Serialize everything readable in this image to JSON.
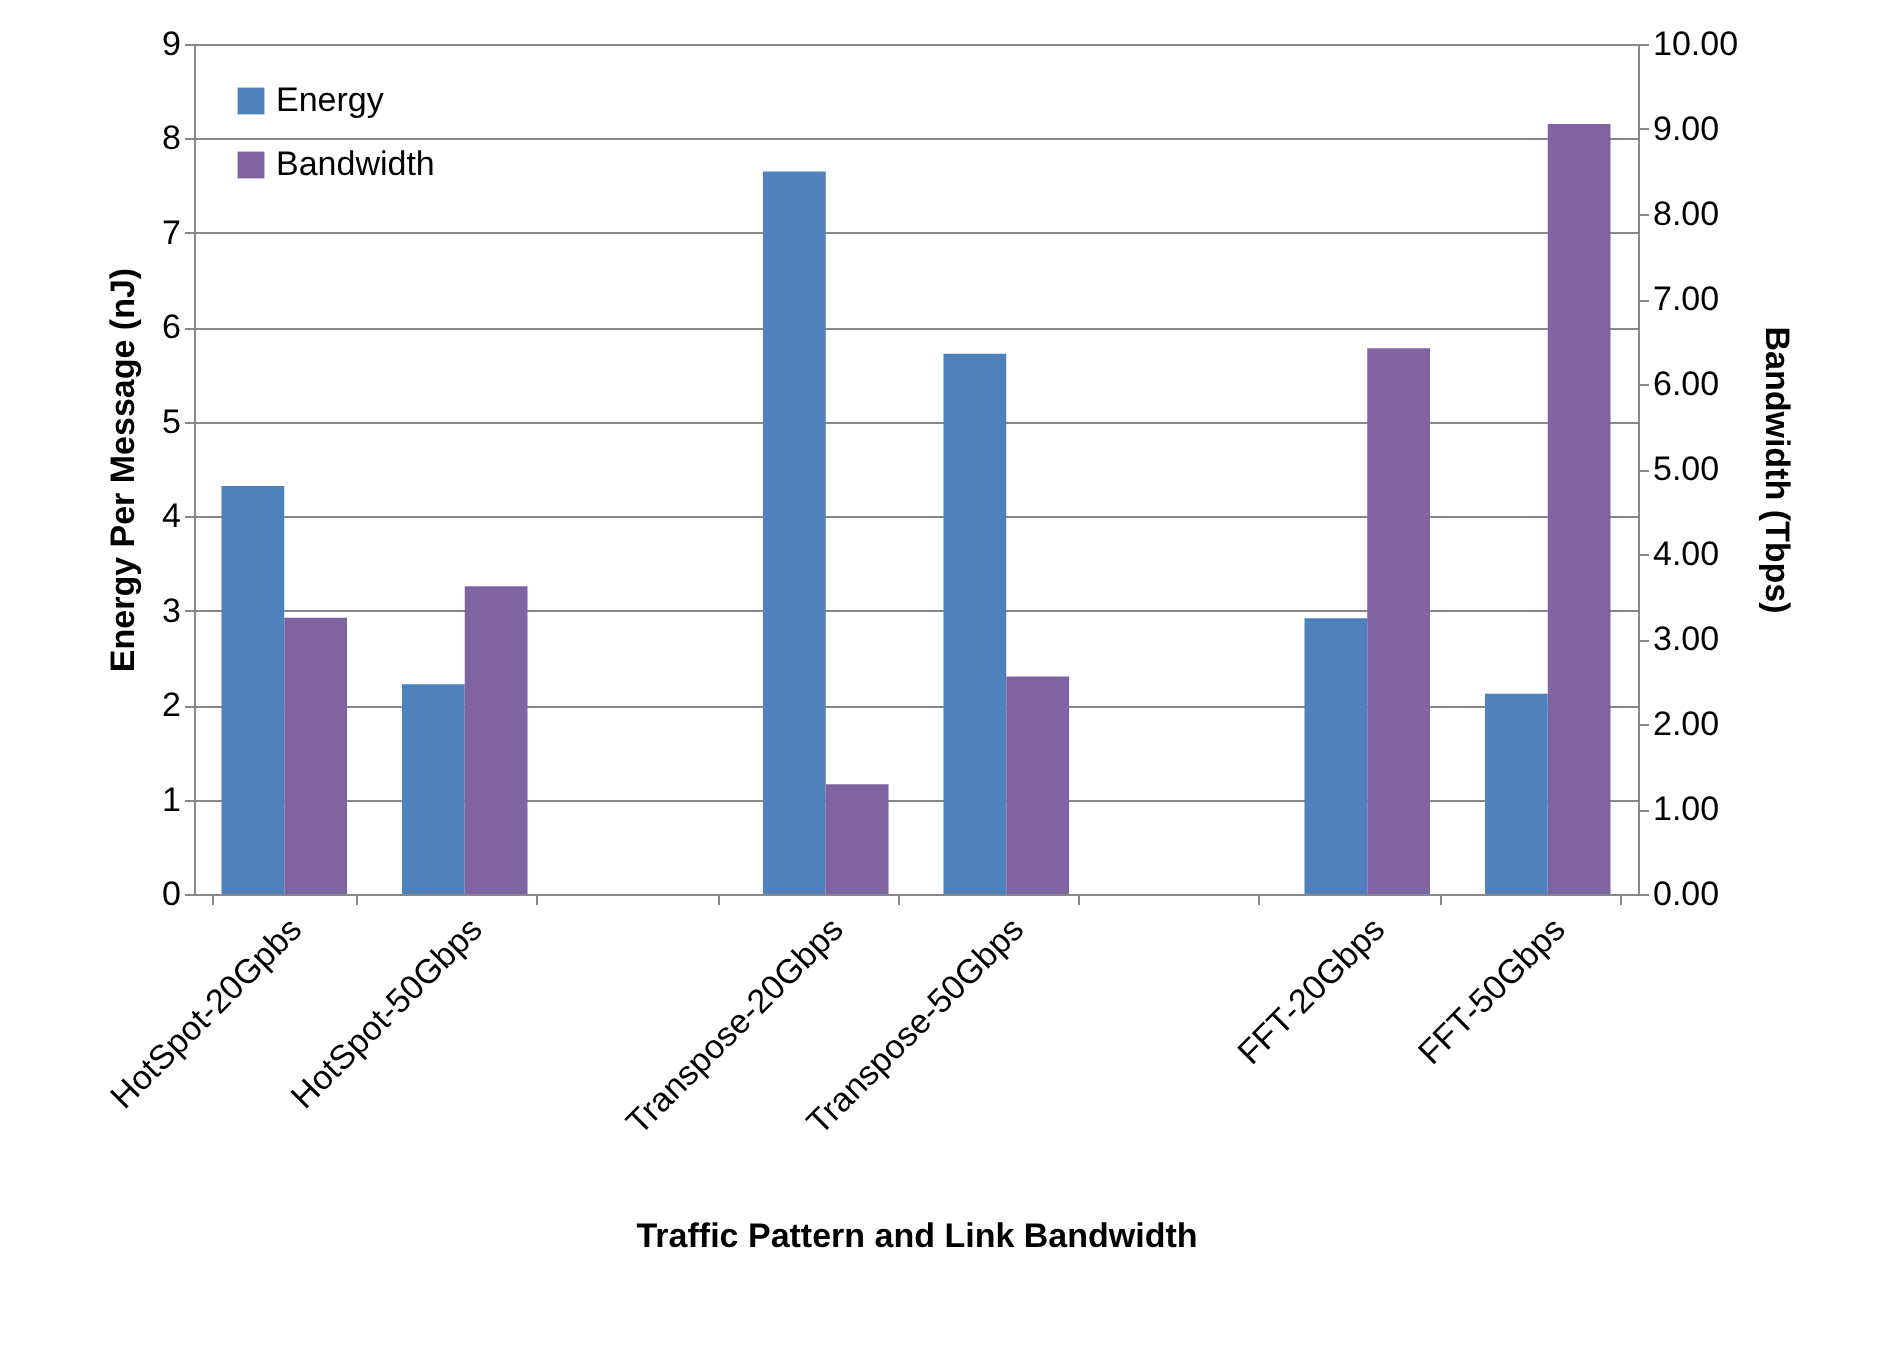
{
  "chart_data": {
    "type": "bar",
    "xlabel": "Traffic Pattern and Link Bandwidth",
    "ylabel": "Energy Per Message (nJ)",
    "y2label": "Bandwidth (Tbps)",
    "categories": [
      "HotSpot-20Gpbs",
      "HotSpot-50Gbps",
      null,
      "Transpose-20Gbps",
      "Transpose-50Gbps",
      null,
      "FFT-20Gbps",
      "FFT-50Gbps"
    ],
    "series": [
      {
        "name": "Energy",
        "color": "#4f81bd",
        "values": [
          4.32,
          2.22,
          null,
          7.65,
          5.72,
          null,
          2.92,
          2.12
        ]
      },
      {
        "name": "Bandwidth",
        "color": "#8064a2",
        "axis": "y2",
        "values": [
          3.25,
          3.62,
          null,
          1.29,
          2.56,
          null,
          6.42,
          9.06
        ]
      }
    ],
    "ylim": [
      0,
      9
    ],
    "yticks": [
      0,
      1,
      2,
      3,
      4,
      5,
      6,
      7,
      8,
      9
    ],
    "y2lim": [
      0,
      10
    ],
    "y2ticks": [
      {
        "value": 0,
        "label": "0.00"
      },
      {
        "value": 1,
        "label": "1.00"
      },
      {
        "value": 2,
        "label": "2.00"
      },
      {
        "value": 3,
        "label": "3.00"
      },
      {
        "value": 4,
        "label": "4.00"
      },
      {
        "value": 5,
        "label": "5.00"
      },
      {
        "value": 6,
        "label": "6.00"
      },
      {
        "value": 7,
        "label": "7.00"
      },
      {
        "value": 8,
        "label": "8.00"
      },
      {
        "value": 9,
        "label": "9.00"
      },
      {
        "value": 10,
        "label": "10.00"
      }
    ],
    "grid": "y",
    "legend": "top left"
  }
}
